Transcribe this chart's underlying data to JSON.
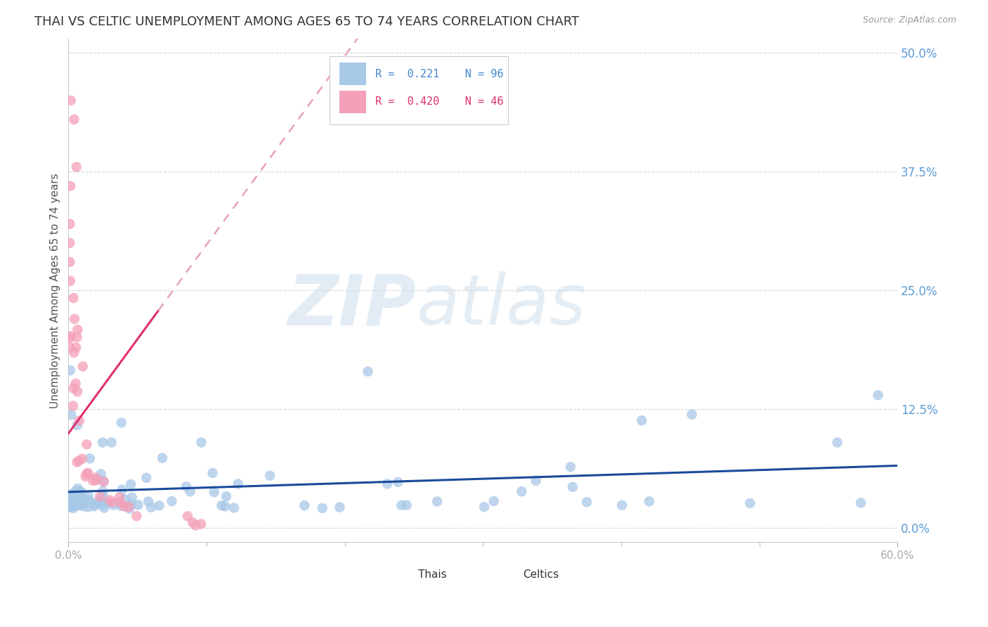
{
  "title": "THAI VS CELTIC UNEMPLOYMENT AMONG AGES 65 TO 74 YEARS CORRELATION CHART",
  "source": "Source: ZipAtlas.com",
  "ylabel": "Unemployment Among Ages 65 to 74 years",
  "xlim": [
    0,
    0.6
  ],
  "ylim": [
    -0.015,
    0.515
  ],
  "yticks": [
    0.0,
    0.125,
    0.25,
    0.375,
    0.5
  ],
  "ytick_labels": [
    "0.0%",
    "12.5%",
    "25.0%",
    "37.5%",
    "50.0%"
  ],
  "xticks": [
    0.0,
    0.6
  ],
  "xtick_labels": [
    "0.0%",
    "60.0%"
  ],
  "extra_xticks": [
    0.1,
    0.2,
    0.3,
    0.4,
    0.5
  ],
  "title_fontsize": 13,
  "axis_tick_color": "#aaaaaa",
  "axis_label_color": "#5b9bd5",
  "background_color": "#ffffff",
  "grid_color": "#cccccc",
  "thai_color": "#a8c8e8",
  "celtic_color": "#f4a0b8",
  "thai_line_color": "#1a4a9a",
  "celtic_line_color": "#e03070",
  "celtic_line_dashed_color": "#e8a0c0",
  "thai_r": 0.221,
  "thai_n": 96,
  "celtic_r": 0.42,
  "celtic_n": 46,
  "legend_r_color": "#4488cc",
  "legend_r2_color": "#e03070"
}
